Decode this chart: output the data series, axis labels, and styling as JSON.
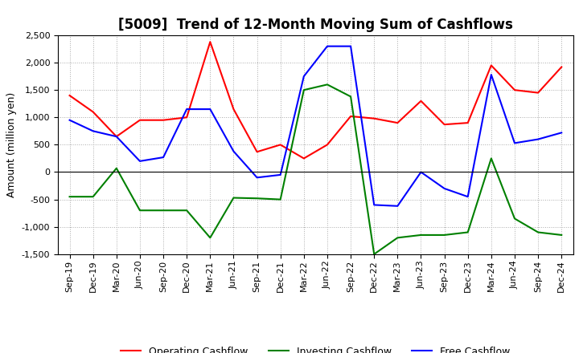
{
  "title": "[5009]  Trend of 12-Month Moving Sum of Cashflows",
  "ylabel": "Amount (million yen)",
  "ylim": [
    -1500,
    2500
  ],
  "yticks": [
    -1500,
    -1000,
    -500,
    0,
    500,
    1000,
    1500,
    2000,
    2500
  ],
  "x_labels": [
    "Sep-19",
    "Dec-19",
    "Mar-20",
    "Jun-20",
    "Sep-20",
    "Dec-20",
    "Mar-21",
    "Jun-21",
    "Sep-21",
    "Dec-21",
    "Mar-22",
    "Jun-22",
    "Sep-22",
    "Dec-22",
    "Mar-23",
    "Jun-23",
    "Sep-23",
    "Dec-23",
    "Mar-24",
    "Jun-24",
    "Sep-24",
    "Dec-24"
  ],
  "operating": [
    1400,
    1100,
    650,
    950,
    950,
    1000,
    2380,
    1150,
    370,
    500,
    250,
    500,
    1020,
    980,
    900,
    1300,
    870,
    900,
    1950,
    1500,
    1450,
    1920
  ],
  "investing": [
    -450,
    -450,
    70,
    -700,
    -700,
    -700,
    -1200,
    -470,
    -480,
    -500,
    1500,
    1600,
    1380,
    -1500,
    -1200,
    -1150,
    -1150,
    -1100,
    250,
    -850,
    -1100,
    -1150
  ],
  "free": [
    950,
    750,
    650,
    200,
    270,
    1150,
    1150,
    380,
    -100,
    -50,
    1750,
    2300,
    2300,
    -600,
    -620,
    0,
    -300,
    -450,
    1780,
    530,
    600,
    720
  ],
  "op_color": "#ff0000",
  "inv_color": "#008000",
  "free_color": "#0000ff",
  "bg_color": "#ffffff",
  "grid_color": "#aaaaaa",
  "title_fontsize": 12,
  "label_fontsize": 9,
  "tick_fontsize": 8
}
